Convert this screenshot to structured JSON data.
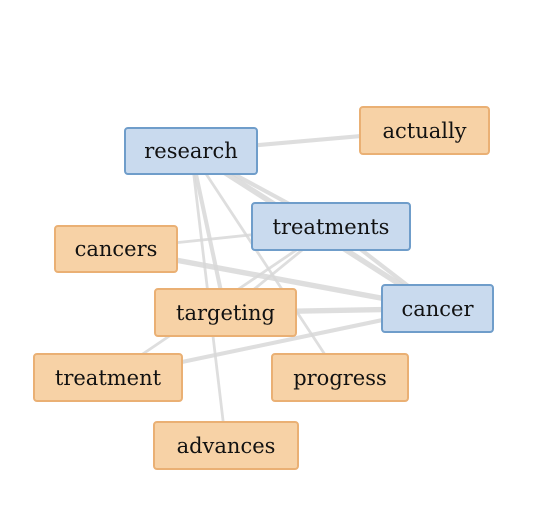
{
  "diagram": {
    "type": "word-association-network",
    "colors": {
      "primary_fill": "#c9daee",
      "primary_border": "#6f9dca",
      "secondary_fill": "#f7d2a6",
      "secondary_border": "#eab074",
      "edge": "#d9d9d9"
    },
    "nodes": [
      {
        "id": "research",
        "label": "research",
        "group": "primary"
      },
      {
        "id": "actually",
        "label": "actually",
        "group": "secondary"
      },
      {
        "id": "treatments",
        "label": "treatments",
        "group": "primary"
      },
      {
        "id": "cancers",
        "label": "cancers",
        "group": "secondary"
      },
      {
        "id": "cancer",
        "label": "cancer",
        "group": "primary"
      },
      {
        "id": "targeting",
        "label": "targeting",
        "group": "secondary"
      },
      {
        "id": "treatment",
        "label": "treatment",
        "group": "secondary"
      },
      {
        "id": "progress",
        "label": "progress",
        "group": "secondary"
      },
      {
        "id": "advances",
        "label": "advances",
        "group": "secondary"
      }
    ],
    "edges": [
      {
        "source": "research",
        "target": "actually",
        "weight": 2
      },
      {
        "source": "research",
        "target": "treatments",
        "weight": 2
      },
      {
        "source": "research",
        "target": "cancer",
        "weight": 3
      },
      {
        "source": "research",
        "target": "targeting",
        "weight": 2
      },
      {
        "source": "research",
        "target": "advances",
        "weight": 1
      },
      {
        "source": "research",
        "target": "progress",
        "weight": 1
      },
      {
        "source": "treatments",
        "target": "cancers",
        "weight": 1
      },
      {
        "source": "treatments",
        "target": "cancer",
        "weight": 2
      },
      {
        "source": "treatments",
        "target": "targeting",
        "weight": 1
      },
      {
        "source": "treatments",
        "target": "treatment",
        "weight": 1
      },
      {
        "source": "cancers",
        "target": "cancer",
        "weight": 3
      },
      {
        "source": "targeting",
        "target": "cancer",
        "weight": 3
      },
      {
        "source": "treatment",
        "target": "cancer",
        "weight": 2
      }
    ]
  }
}
